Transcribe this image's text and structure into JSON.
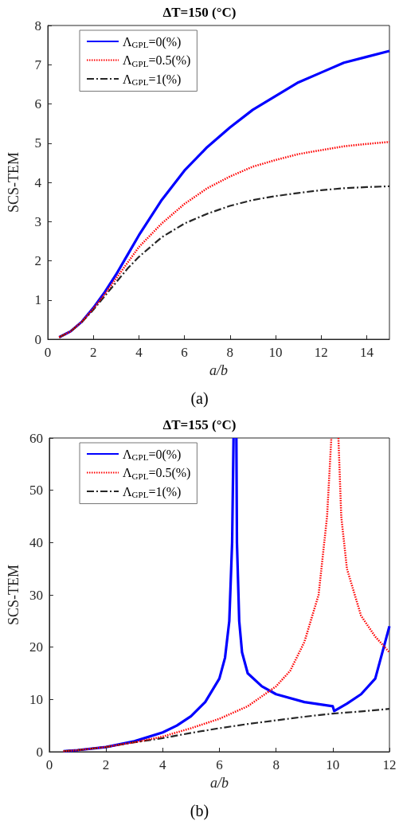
{
  "chart_data": [
    {
      "type": "line",
      "title": "ΔT=150 (°C)",
      "xlabel": "a/b",
      "ylabel": "SCS-TEM",
      "xlim": [
        0,
        15
      ],
      "xticks": [
        0,
        2,
        4,
        6,
        8,
        10,
        12,
        14
      ],
      "ylim": [
        0,
        8
      ],
      "yticks": [
        0,
        1,
        2,
        3,
        4,
        5,
        6,
        7,
        8
      ],
      "grid": false,
      "legend": "top left",
      "marker": "none",
      "annotations": [
        "(a)"
      ],
      "series": [
        {
          "name": "Λ$_{GPL}$=0(%)",
          "color": "#0000ff",
          "line_style": "solid",
          "x": [
            0.5,
            1,
            1.5,
            2,
            2.5,
            3,
            3.5,
            4,
            5,
            6,
            7,
            8,
            9,
            10,
            11,
            12,
            13,
            14,
            15
          ],
          "values": [
            0.05,
            0.2,
            0.45,
            0.8,
            1.2,
            1.65,
            2.15,
            2.65,
            3.55,
            4.3,
            4.9,
            5.4,
            5.85,
            6.2,
            6.55,
            6.8,
            7.05,
            7.2,
            7.35
          ]
        },
        {
          "name": "Λ$_{GPL}$=0.5(%)",
          "color": "#ff0000",
          "line_style": "dotted",
          "x": [
            0.5,
            1,
            1.5,
            2,
            2.5,
            3,
            3.5,
            4,
            5,
            6,
            7,
            8,
            9,
            10,
            11,
            12,
            13,
            14,
            15
          ],
          "values": [
            0.05,
            0.2,
            0.45,
            0.78,
            1.15,
            1.55,
            1.95,
            2.35,
            2.95,
            3.45,
            3.85,
            4.15,
            4.4,
            4.57,
            4.72,
            4.82,
            4.92,
            4.98,
            5.03
          ]
        },
        {
          "name": "Λ$_{GPL}$=1(%)",
          "color": "#262626",
          "line_style": "dashed",
          "x": [
            0.5,
            1,
            1.5,
            2,
            2.5,
            3,
            3.5,
            4,
            5,
            6,
            7,
            8,
            9,
            10,
            11,
            12,
            13,
            14,
            15
          ],
          "values": [
            0.05,
            0.2,
            0.44,
            0.75,
            1.1,
            1.45,
            1.8,
            2.1,
            2.6,
            2.95,
            3.2,
            3.4,
            3.55,
            3.65,
            3.73,
            3.8,
            3.85,
            3.88,
            3.9
          ]
        }
      ]
    },
    {
      "type": "line",
      "title": "ΔT=155 (°C)",
      "xlabel": "a/b",
      "ylabel": "SCS-TEM",
      "xlim": [
        0,
        12
      ],
      "xticks": [
        0,
        2,
        4,
        6,
        8,
        10,
        12
      ],
      "ylim": [
        0,
        60
      ],
      "yticks": [
        0,
        10,
        20,
        30,
        40,
        50,
        60
      ],
      "grid": false,
      "legend": "top left",
      "marker": "none",
      "annotations": [
        "(b)"
      ],
      "series": [
        {
          "name": "Λ$_{GPL}$=0(%)",
          "color": "#0000ff",
          "line_style": "solid",
          "x": [
            0.5,
            1,
            2,
            3,
            4,
            4.5,
            5,
            5.5,
            6,
            6.2,
            6.35,
            6.45,
            6.5,
            6.55,
            6.6,
            6.62,
            6.7,
            6.8,
            7,
            7.5,
            8,
            9,
            10,
            10.05,
            10.5,
            11,
            11.5,
            12
          ],
          "values": [
            0.1,
            0.3,
            0.9,
            2,
            3.7,
            5,
            6.8,
            9.5,
            14,
            18,
            25,
            40,
            60,
            null,
            60,
            40,
            25,
            19,
            15,
            12.5,
            11,
            9.5,
            8.7,
            7.8,
            9.2,
            11,
            14,
            24
          ]
        },
        {
          "name": "Λ$_{GPL}$=0.5(%)",
          "color": "#ff0000",
          "line_style": "dotted",
          "x": [
            0.5,
            1,
            2,
            3,
            4,
            5,
            6,
            7,
            8,
            8.5,
            9,
            9.5,
            9.8,
            9.95,
            10.05,
            10.2,
            10.3,
            10.5,
            11,
            11.5,
            12
          ],
          "values": [
            0.1,
            0.3,
            0.9,
            1.8,
            2.9,
            4.5,
            6.3,
            8.7,
            12.5,
            15.5,
            21,
            30,
            45,
            60,
            null,
            60,
            45,
            35,
            26,
            22,
            19
          ]
        },
        {
          "name": "Λ$_{GPL}$=1(%)",
          "color": "#262626",
          "line_style": "dashed",
          "x": [
            0.5,
            1,
            2,
            3,
            4,
            5,
            6,
            7,
            8,
            9,
            10,
            11,
            12
          ],
          "values": [
            0.1,
            0.3,
            0.9,
            1.8,
            2.6,
            3.6,
            4.5,
            5.3,
            6,
            6.7,
            7.3,
            7.7,
            8.2
          ]
        }
      ]
    }
  ]
}
